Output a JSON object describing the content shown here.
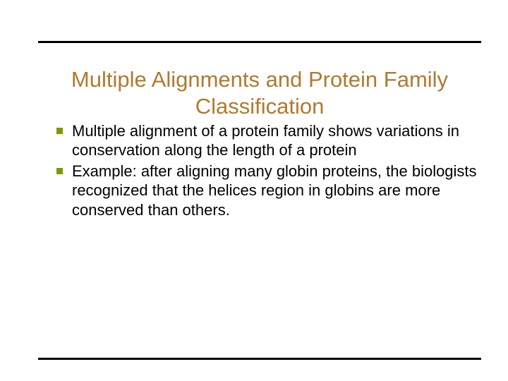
{
  "colors": {
    "title": "#b07a2e",
    "bullet_marker": "#7a9a01",
    "rule": "#000000",
    "text": "#000000",
    "background": "#ffffff"
  },
  "typography": {
    "title_fontsize": 31,
    "body_fontsize": 22,
    "body_lineheight": 1.25
  },
  "title": "Multiple Alignments and Protein Family Classification",
  "bullets": [
    "Multiple alignment of a protein family shows variations in conservation along the length of a protein",
    "Example: after aligning many globin proteins, the biologists recognized that the helices region in globins are more conserved than others."
  ]
}
